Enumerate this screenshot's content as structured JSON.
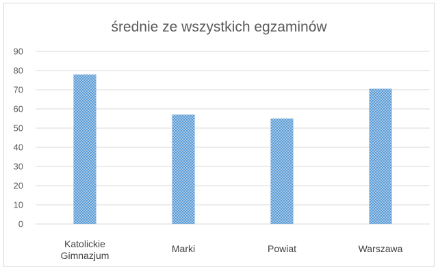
{
  "chart_data": {
    "type": "bar",
    "title": "średnie ze wszystkich egzaminów",
    "categories": [
      "Katolickie Gimnazjum",
      "Marki",
      "Powiat",
      "Warszawa"
    ],
    "category_lines": [
      [
        "Katolickie",
        "Gimnazjum"
      ],
      [
        "Marki"
      ],
      [
        "Powiat"
      ],
      [
        "Warszawa"
      ]
    ],
    "values": [
      78,
      57,
      55,
      70.5
    ],
    "ylim": [
      0,
      90
    ],
    "yticks": [
      0,
      10,
      20,
      30,
      40,
      50,
      60,
      70,
      80,
      90
    ],
    "grid": true,
    "legend": "none",
    "colors": {
      "bar": "#5b9bd5",
      "bar_dots": "#ffffff",
      "grid": "#d9d9d9",
      "text": "#595959"
    }
  }
}
